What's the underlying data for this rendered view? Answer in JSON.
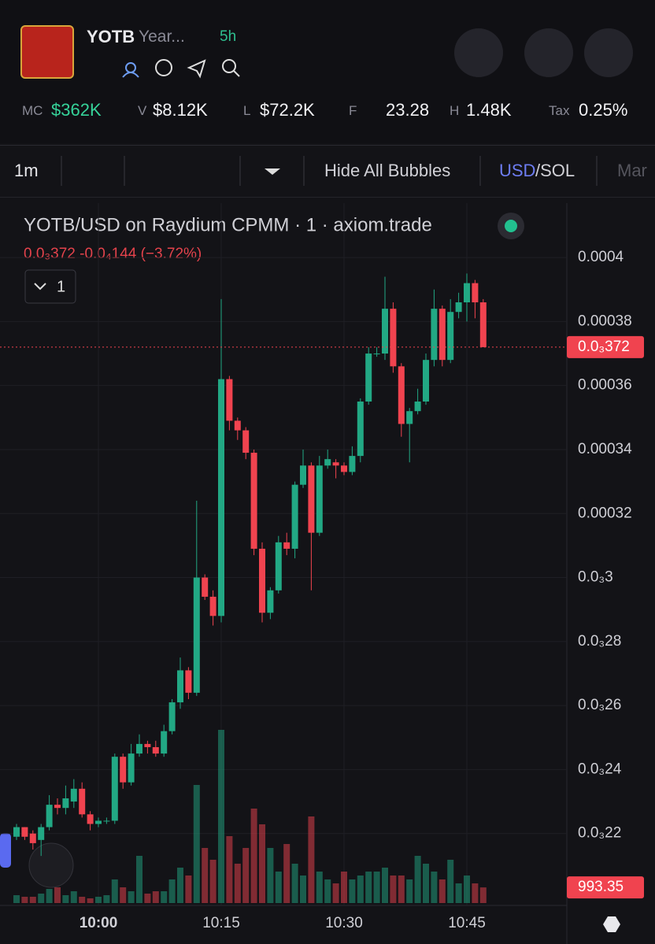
{
  "header": {
    "symbol": "YOTB",
    "name": "Year...",
    "age": "5h"
  },
  "stats": [
    {
      "label": "MC",
      "value": "$362K"
    },
    {
      "label": "V",
      "value": "$8.12K"
    },
    {
      "label": "L",
      "value": "$72.2K"
    },
    {
      "label": "F",
      "value": "23.28"
    },
    {
      "label": "H",
      "value": "1.48K"
    },
    {
      "label": "Tax",
      "value": "0.25%"
    }
  ],
  "toolbar": {
    "interval": "1m",
    "bubbles": "Hide All Bubbles",
    "currency": "USD",
    "alt_currency": "/SOL",
    "more": "Mar"
  },
  "chart_data": {
    "type": "candlestick",
    "title": "YOTB/USD on Raydium CPMM · 1 · axiom.trade",
    "subtitle": "0.0₃372  -0.0₄144 (−3.72%)",
    "legend_toggle": "1",
    "up_color": "#22a884",
    "down_color": "#f0434f",
    "categories": [
      null,
      null,
      null,
      null,
      null,
      null,
      null,
      null,
      null,
      null,
      "10:00",
      null,
      null,
      null,
      null,
      null,
      null,
      null,
      null,
      null,
      null,
      null,
      null,
      null,
      null,
      "10:15",
      null,
      null,
      null,
      null,
      null,
      null,
      null,
      null,
      null,
      null,
      null,
      null,
      null,
      null,
      "10:30",
      null,
      null,
      null,
      null,
      null,
      null,
      null,
      null,
      null,
      null,
      null,
      null,
      null,
      null,
      "10:45",
      null,
      null
    ],
    "open": [
      0.000219,
      0.000222,
      0.00022,
      0.000218,
      0.000222,
      0.000229,
      0.000228,
      0.00023,
      0.000234,
      0.000226,
      0.000223,
      0.000224,
      0.000224,
      0.000244,
      0.000236,
      0.000245,
      0.000248,
      0.000247,
      0.000245,
      0.000252,
      0.000261,
      0.000271,
      0.000264,
      0.0003,
      0.000294,
      0.000288,
      0.000362,
      0.000349,
      0.000346,
      0.000339,
      0.000309,
      0.000289,
      0.000296,
      0.000311,
      0.000309,
      0.000329,
      0.000335,
      0.000314,
      0.000335,
      0.000336,
      0.000335,
      0.000333,
      0.000338,
      0.000355,
      0.00037,
      0.00037,
      0.000384,
      0.000366,
      0.000348,
      0.000352,
      0.000355,
      0.000368,
      0.000384,
      0.000368,
      0.000383,
      0.000386,
      0.000392,
      0.000386
    ],
    "high": [
      0.000223,
      0.000222,
      0.000221,
      0.000223,
      0.000232,
      0.000231,
      0.000235,
      0.000237,
      0.000236,
      0.000227,
      0.000225,
      0.000225,
      0.000245,
      0.000245,
      0.000248,
      0.000251,
      0.000249,
      0.000249,
      0.000254,
      0.000262,
      0.000275,
      0.000272,
      0.000324,
      0.000301,
      0.000296,
      0.000387,
      0.000363,
      0.00035,
      0.000347,
      0.00034,
      0.000311,
      0.000297,
      0.000313,
      0.000314,
      0.00033,
      0.00034,
      0.000336,
      0.000338,
      0.00034,
      0.000337,
      0.000336,
      0.000341,
      0.000356,
      0.000372,
      0.000372,
      0.000394,
      0.000386,
      0.000367,
      0.000353,
      0.000359,
      0.00037,
      0.00039,
      0.000385,
      0.000387,
      0.000389,
      0.000395,
      0.000393,
      0.000387
    ],
    "low": [
      0.000218,
      0.000218,
      0.000215,
      0.000213,
      0.000221,
      0.000226,
      0.000226,
      0.000228,
      0.000225,
      0.000221,
      0.000222,
      0.000223,
      0.000223,
      0.000234,
      0.000235,
      0.000244,
      0.000245,
      0.000244,
      0.000244,
      0.000251,
      0.000259,
      0.000262,
      0.000263,
      0.000293,
      0.000285,
      0.000286,
      0.000346,
      0.000343,
      0.000337,
      0.000307,
      0.000286,
      0.000287,
      0.000295,
      0.000307,
      0.000306,
      0.000328,
      0.000296,
      0.000313,
      0.000334,
      0.000331,
      0.000332,
      0.000332,
      0.000336,
      0.000354,
      0.000369,
      0.000368,
      0.000364,
      0.000344,
      0.000336,
      0.000351,
      0.000354,
      0.000366,
      0.000366,
      0.000367,
      0.000381,
      0.00038,
      0.000381,
      0.000372
    ],
    "close": [
      0.000222,
      0.000219,
      0.000217,
      0.000222,
      0.000229,
      0.000228,
      0.000231,
      0.000234,
      0.000226,
      0.000223,
      0.000224,
      0.000224,
      0.000244,
      0.000236,
      0.000245,
      0.000248,
      0.000247,
      0.000245,
      0.000252,
      0.000261,
      0.000271,
      0.000264,
      0.0003,
      0.000294,
      0.000288,
      0.000362,
      0.000349,
      0.000346,
      0.000339,
      0.000309,
      0.000289,
      0.000296,
      0.000311,
      0.000309,
      0.000329,
      0.000335,
      0.000314,
      0.000335,
      0.000337,
      0.000335,
      0.000333,
      0.000338,
      0.000355,
      0.00037,
      0.00037,
      0.000384,
      0.000366,
      0.000348,
      0.000352,
      0.000355,
      0.000368,
      0.000384,
      0.000368,
      0.000383,
      0.000386,
      0.000392,
      0.000386,
      0.000372
    ],
    "volume": [
      500,
      400,
      400,
      600,
      900,
      1000,
      500,
      750,
      400,
      300,
      400,
      500,
      1500,
      1000,
      750,
      3000,
      600,
      750,
      750,
      1500,
      2250,
      1750,
      7500,
      3500,
      2750,
      11000,
      4250,
      2500,
      3500,
      6000,
      5000,
      3500,
      2000,
      3750,
      2500,
      1750,
      5500,
      2000,
      1500,
      1250,
      2000,
      1500,
      1750,
      2000,
      2000,
      2250,
      1750,
      1750,
      1500,
      3000,
      2500,
      2000,
      1500,
      2750,
      1250,
      1750,
      1250,
      993.35
    ],
    "volume_ylim": [
      0,
      44450
    ],
    "last_price": {
      "value": 0.000372,
      "label": "0.0₃372"
    },
    "ylim": [
      0.0002,
      0.000417
    ],
    "yticks": [
      0.0004,
      0.00038,
      0.00036,
      0.00034,
      0.00032,
      {
        "value": 0.0003,
        "label": "0.0₃3"
      },
      {
        "value": 0.00028,
        "label": "0.0₃28"
      },
      {
        "value": 0.00026,
        "label": "0.0₃26"
      },
      {
        "value": 0.00024,
        "label": "0.0₃24"
      },
      {
        "value": 0.00022,
        "label": "0.0₃22"
      }
    ],
    "grid": true
  }
}
